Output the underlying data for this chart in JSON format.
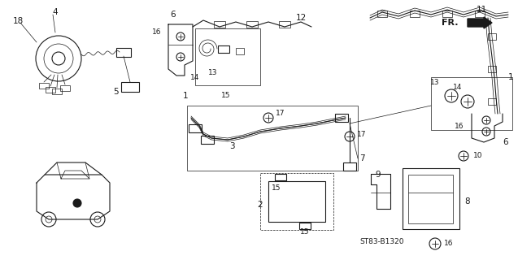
{
  "bg_color": "#ffffff",
  "line_color": "#1a1a1a",
  "diagram_code": "ST83-B1320",
  "label_fontsize": 7.5,
  "figsize": [
    6.37,
    3.2
  ],
  "dpi": 100,
  "img_extent": [
    0,
    637,
    0,
    320
  ]
}
